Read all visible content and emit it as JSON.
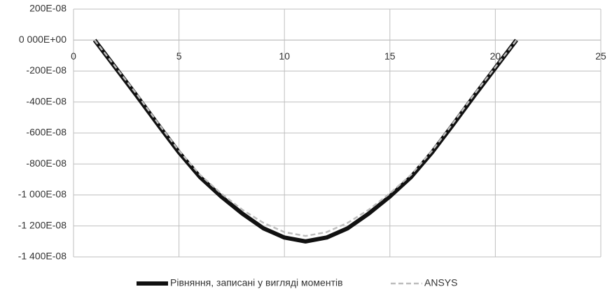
{
  "chart_data": {
    "type": "line",
    "x": [
      1,
      2,
      3,
      4,
      5,
      6,
      7,
      8,
      9,
      10,
      11,
      12,
      13,
      14,
      15,
      16,
      17,
      18,
      19,
      20,
      21
    ],
    "series": [
      {
        "name": "Рівняння, записані у вигляді моментів",
        "color": "#111111",
        "width": 6,
        "dashed": false,
        "values": [
          0,
          -1.8e-06,
          -3.6e-06,
          -5.45e-06,
          -7.25e-06,
          -8.85e-06,
          -1.01e-05,
          -1.12e-05,
          -1.215e-05,
          -1.275e-05,
          -1.3e-05,
          -1.275e-05,
          -1.215e-05,
          -1.12e-05,
          -1.01e-05,
          -8.85e-06,
          -7.25e-06,
          -5.45e-06,
          -3.6e-06,
          -1.8e-06,
          0
        ]
      },
      {
        "name": "ANSYS",
        "color": "#bdbdbd",
        "width": 2.5,
        "dashed": true,
        "values": [
          0,
          -1.75e-06,
          -3.5e-06,
          -5.35e-06,
          -7.15e-06,
          -8.7e-06,
          -9.9e-06,
          -1.095e-05,
          -1.18e-05,
          -1.24e-05,
          -1.265e-05,
          -1.24e-05,
          -1.18e-05,
          -1.095e-05,
          -9.9e-06,
          -8.7e-06,
          -7.15e-06,
          -5.35e-06,
          -3.5e-06,
          -1.75e-06,
          0
        ]
      }
    ],
    "xlim": [
      0,
      25
    ],
    "xticks": [
      0,
      5,
      10,
      15,
      20,
      25
    ],
    "ylim": [
      -1.4e-05,
      2e-06
    ],
    "yticks": [
      {
        "value": 2e-06,
        "label": "200E-08"
      },
      {
        "value": 0,
        "label": "0 000E+00"
      },
      {
        "value": -2e-06,
        "label": "-200E-08"
      },
      {
        "value": -4e-06,
        "label": "-400E-08"
      },
      {
        "value": -6e-06,
        "label": "-600E-08"
      },
      {
        "value": -8e-06,
        "label": "-800E-08"
      },
      {
        "value": -1e-05,
        "label": "-1 000E-08"
      },
      {
        "value": -1.2e-05,
        "label": "-1 200E-08"
      },
      {
        "value": -1.4e-05,
        "label": "-1 400E-08"
      }
    ],
    "grid": true,
    "legend": "bottom"
  }
}
